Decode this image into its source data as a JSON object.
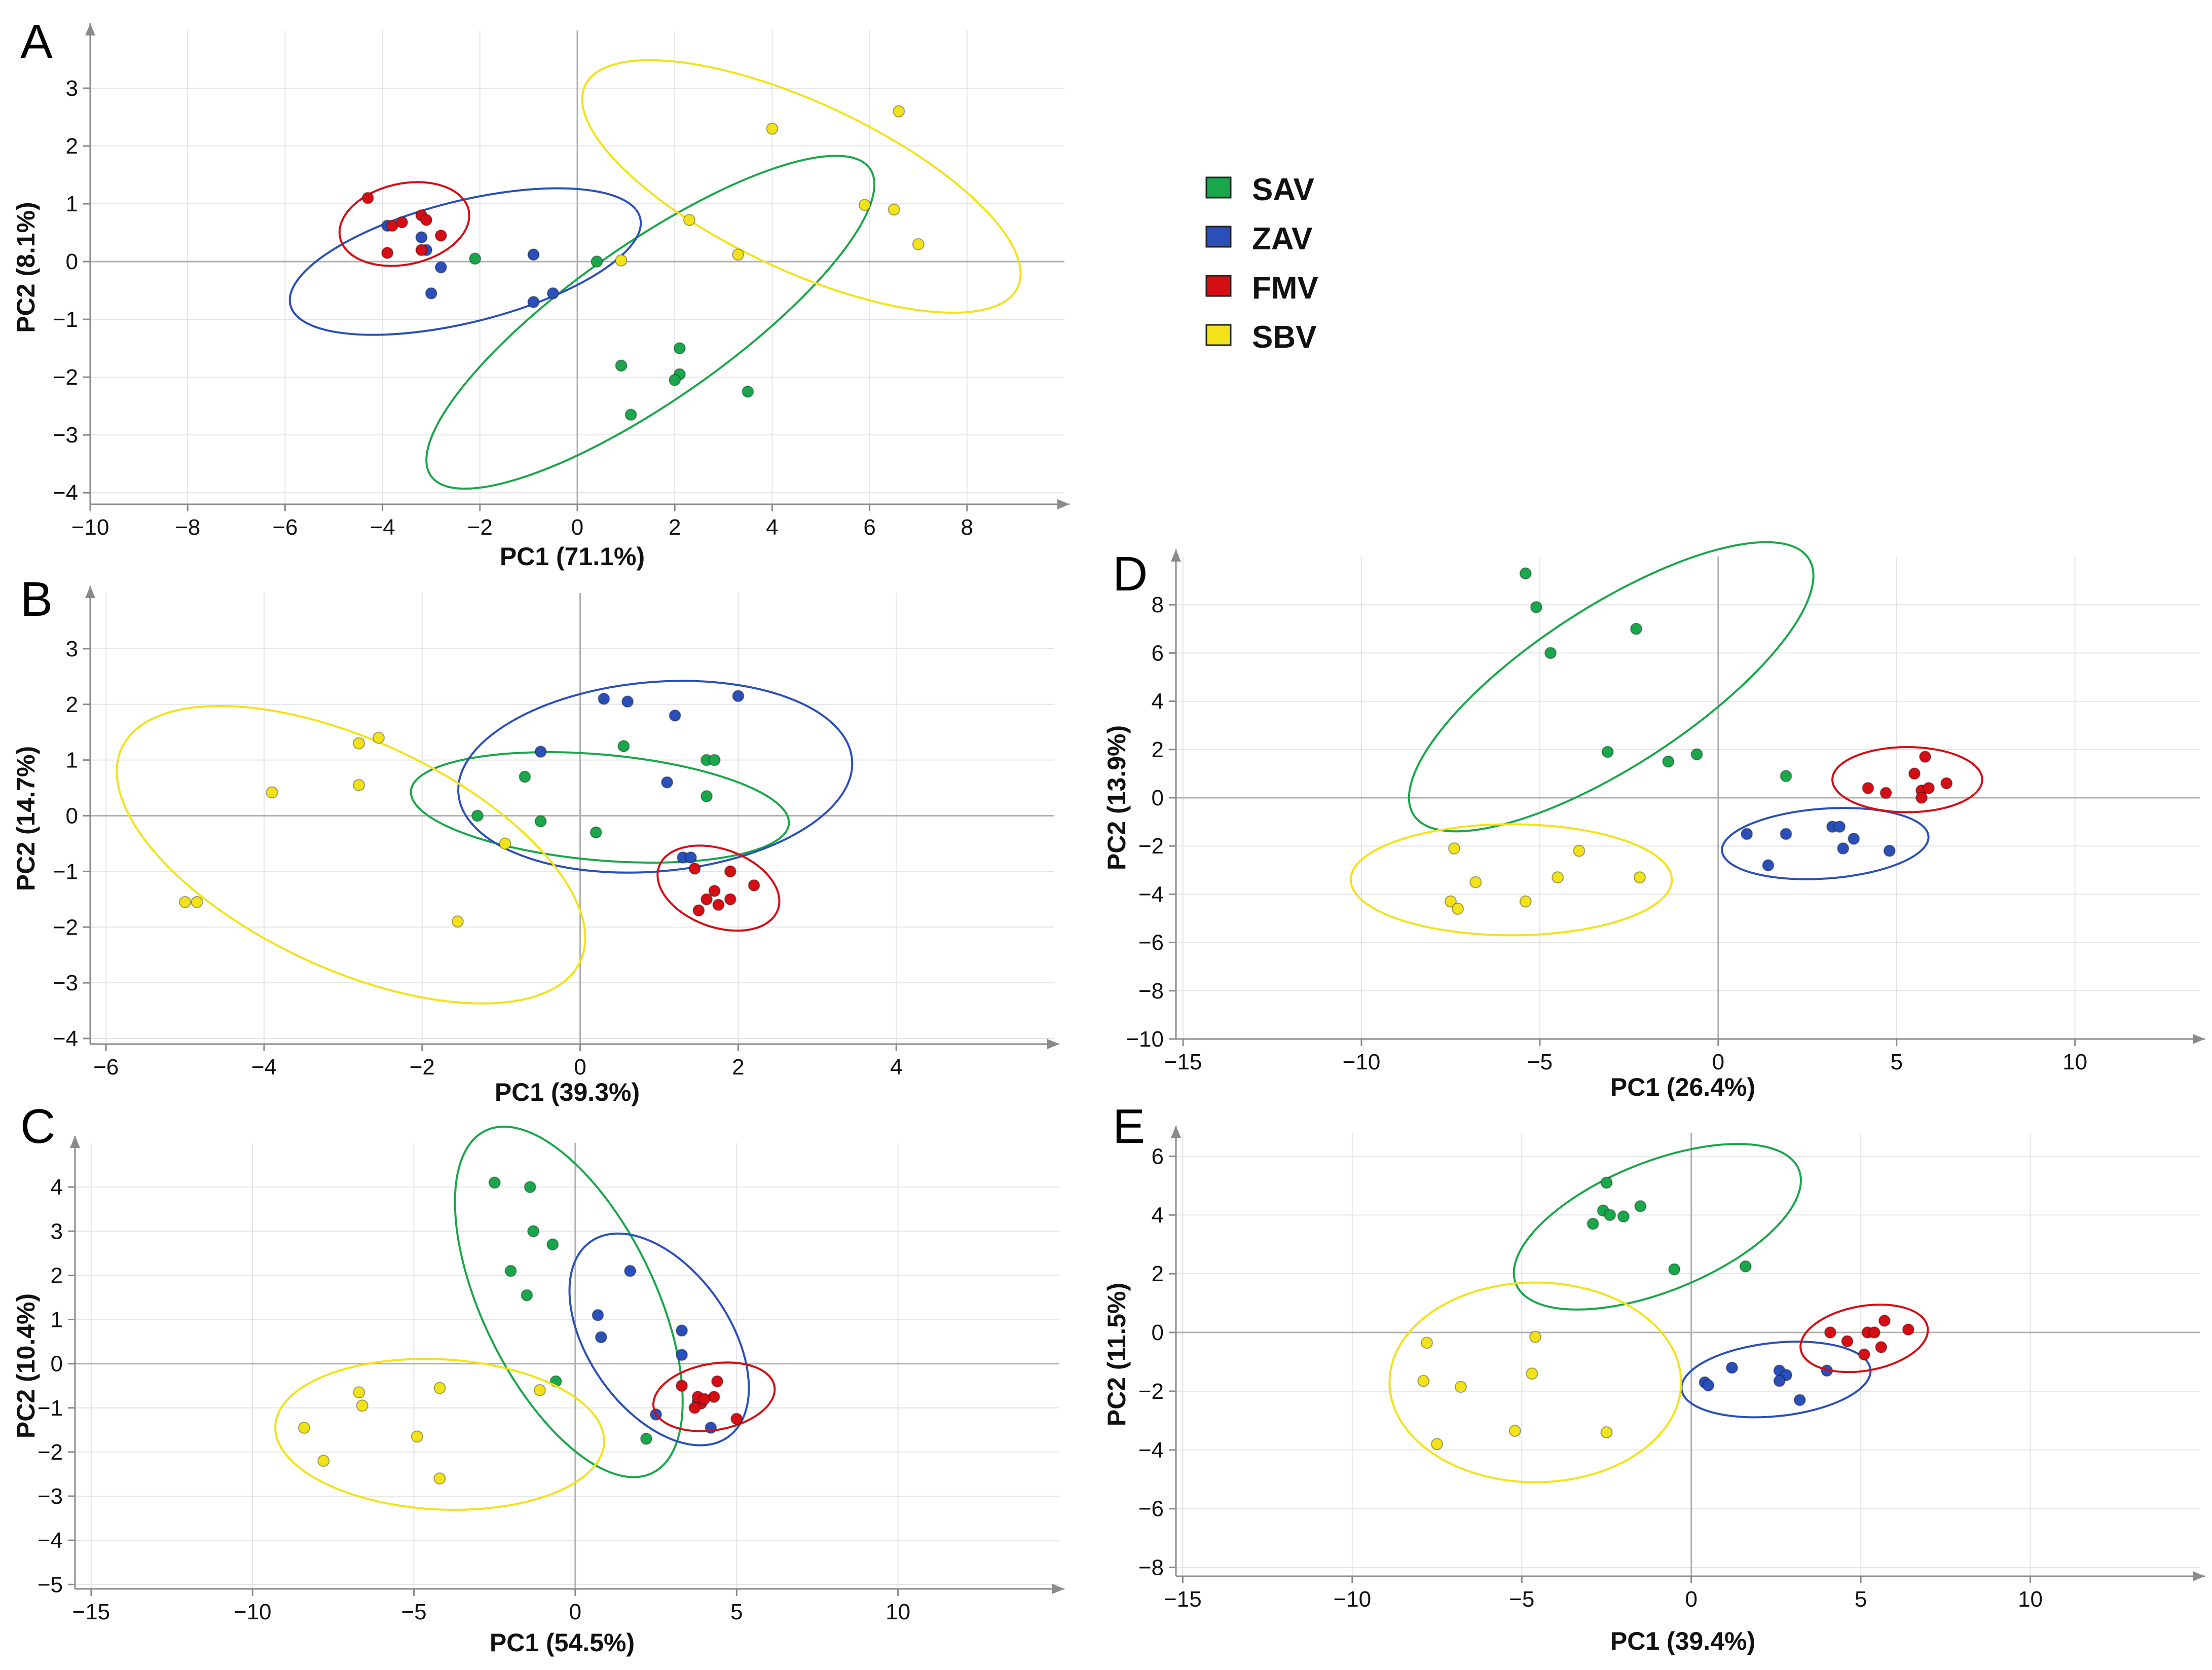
{
  "legend": {
    "items": [
      {
        "id": "SAV",
        "label": "SAV",
        "color": "#1aa64a"
      },
      {
        "id": "ZAV",
        "label": "ZAV",
        "color": "#2b4fb8"
      },
      {
        "id": "FMV",
        "label": "FMV",
        "color": "#d40e14"
      },
      {
        "id": "SBV",
        "label": "SBV",
        "color": "#f2e219"
      }
    ]
  },
  "chart_data": [
    {
      "type": "scatter",
      "panel": "A",
      "xlabel": "PC1 (71.1%)",
      "ylabel": "PC2 (8.1%)",
      "xlim": [
        -10,
        10
      ],
      "ylim": [
        -4.2,
        4
      ],
      "xticks": [
        -10,
        -8,
        -6,
        -4,
        -2,
        0,
        2,
        4,
        6,
        8
      ],
      "xtick_labels": [
        "−10",
        "−8",
        "−6",
        "−4",
        "−2",
        "0",
        "2",
        "4",
        "6",
        "8"
      ],
      "yticks": [
        -4,
        -3,
        -2,
        -1,
        0,
        1,
        2,
        3
      ],
      "ytick_labels": [
        "−4",
        "−3",
        "−2",
        "−1",
        "0",
        "1",
        "2",
        "3"
      ],
      "series": [
        {
          "name": "SAV",
          "points": [
            [
              -2.1,
              0.05
            ],
            [
              0.4,
              0.0
            ],
            [
              2.1,
              -1.5
            ],
            [
              0.9,
              -1.8
            ],
            [
              2.1,
              -1.95
            ],
            [
              2.0,
              -2.05
            ],
            [
              3.5,
              -2.25
            ],
            [
              1.1,
              -2.65
            ]
          ],
          "ellipse": {
            "cx": 1.5,
            "cy": -1.05,
            "rx": 5.5,
            "ry": 1.35,
            "angle": -35
          }
        },
        {
          "name": "ZAV",
          "points": [
            [
              -3.9,
              0.62
            ],
            [
              -3.2,
              0.42
            ],
            [
              -3.1,
              0.2
            ],
            [
              -2.8,
              -0.1
            ],
            [
              -3.0,
              -0.55
            ],
            [
              -0.9,
              0.12
            ],
            [
              -0.9,
              -0.7
            ],
            [
              -0.5,
              -0.55
            ]
          ],
          "ellipse": {
            "cx": -2.3,
            "cy": 0.0,
            "rx": 3.7,
            "ry": 1.05,
            "angle": -14
          }
        },
        {
          "name": "FMV",
          "points": [
            [
              -4.3,
              1.1
            ],
            [
              -3.8,
              0.62
            ],
            [
              -3.6,
              0.68
            ],
            [
              -3.2,
              0.8
            ],
            [
              -3.1,
              0.72
            ],
            [
              -2.8,
              0.45
            ],
            [
              -3.2,
              0.2
            ],
            [
              -3.9,
              0.15
            ]
          ],
          "ellipse": {
            "cx": -3.55,
            "cy": 0.65,
            "rx": 1.35,
            "ry": 0.7,
            "angle": -12
          }
        },
        {
          "name": "SBV",
          "points": [
            [
              4.0,
              2.3
            ],
            [
              6.6,
              2.6
            ],
            [
              5.9,
              0.98
            ],
            [
              6.5,
              0.9
            ],
            [
              7.0,
              0.3
            ],
            [
              2.3,
              0.72
            ],
            [
              3.3,
              0.12
            ],
            [
              0.9,
              0.02
            ]
          ],
          "ellipse": {
            "cx": 4.6,
            "cy": 1.3,
            "rx": 4.9,
            "ry": 1.45,
            "angle": 25
          }
        }
      ]
    },
    {
      "type": "scatter",
      "panel": "B",
      "xlabel": "PC1 (39.3%)",
      "ylabel": "PC2 (14.7%)",
      "xlim": [
        -6.2,
        6
      ],
      "ylim": [
        -4.1,
        4
      ],
      "xticks": [
        -6,
        -4,
        -2,
        0,
        2,
        4
      ],
      "xtick_labels": [
        "−6",
        "−4",
        "−2",
        "0",
        "2",
        "4"
      ],
      "yticks": [
        -4,
        -3,
        -2,
        -1,
        0,
        1,
        2,
        3
      ],
      "ytick_labels": [
        "−4",
        "−3",
        "−2",
        "−1",
        "0",
        "1",
        "2",
        "3"
      ],
      "series": [
        {
          "name": "SAV",
          "points": [
            [
              -1.3,
              0.0
            ],
            [
              -0.7,
              0.7
            ],
            [
              -0.5,
              -0.1
            ],
            [
              0.2,
              -0.3
            ],
            [
              0.55,
              1.25
            ],
            [
              1.6,
              1.0
            ],
            [
              1.7,
              1.0
            ],
            [
              1.6,
              0.35
            ]
          ],
          "ellipse": {
            "cx": 0.25,
            "cy": 0.15,
            "rx": 2.4,
            "ry": 0.95,
            "angle": 5
          }
        },
        {
          "name": "ZAV",
          "points": [
            [
              -0.5,
              1.15
            ],
            [
              0.3,
              2.1
            ],
            [
              0.6,
              2.05
            ],
            [
              1.2,
              1.8
            ],
            [
              2.0,
              2.15
            ],
            [
              1.1,
              0.6
            ],
            [
              1.3,
              -0.75
            ],
            [
              1.4,
              -0.75
            ]
          ],
          "ellipse": {
            "cx": 0.95,
            "cy": 0.7,
            "rx": 2.5,
            "ry": 1.7,
            "angle": -5
          }
        },
        {
          "name": "FMV",
          "points": [
            [
              1.45,
              -0.95
            ],
            [
              1.9,
              -1.0
            ],
            [
              2.2,
              -1.25
            ],
            [
              1.7,
              -1.35
            ],
            [
              1.9,
              -1.5
            ],
            [
              1.75,
              -1.6
            ],
            [
              1.6,
              -1.5
            ],
            [
              1.5,
              -1.7
            ]
          ],
          "ellipse": {
            "cx": 1.75,
            "cy": -1.3,
            "rx": 0.8,
            "ry": 0.7,
            "angle": 20
          }
        },
        {
          "name": "SBV",
          "points": [
            [
              -5.0,
              -1.55
            ],
            [
              -4.85,
              -1.55
            ],
            [
              -3.9,
              0.42
            ],
            [
              -2.8,
              1.3
            ],
            [
              -2.55,
              1.4
            ],
            [
              -2.8,
              0.55
            ],
            [
              -0.95,
              -0.5
            ],
            [
              -1.55,
              -1.9
            ]
          ],
          "ellipse": {
            "cx": -2.9,
            "cy": -0.7,
            "rx": 3.2,
            "ry": 2.05,
            "angle": 25
          }
        }
      ]
    },
    {
      "type": "scatter",
      "panel": "C",
      "xlabel": "PC1 (54.5%)",
      "ylabel": "PC2 (10.4%)",
      "xlim": [
        -15.5,
        15
      ],
      "ylim": [
        -5.1,
        5
      ],
      "xticks": [
        -15,
        -10,
        -5,
        0,
        5,
        10
      ],
      "xtick_labels": [
        "−15",
        "−10",
        "−5",
        "0",
        "5",
        "10"
      ],
      "yticks": [
        -5,
        -4,
        -3,
        -2,
        -1,
        0,
        1,
        2,
        3,
        4
      ],
      "ytick_labels": [
        "−5",
        "−4",
        "−3",
        "−2",
        "−1",
        "0",
        "1",
        "2",
        "3",
        "4"
      ],
      "series": [
        {
          "name": "SAV",
          "points": [
            [
              -2.5,
              4.1
            ],
            [
              -1.4,
              4.0
            ],
            [
              -1.3,
              3.0
            ],
            [
              -0.7,
              2.7
            ],
            [
              -2.0,
              2.1
            ],
            [
              -1.5,
              1.55
            ],
            [
              -0.6,
              -0.4
            ],
            [
              2.2,
              -1.7
            ]
          ],
          "ellipse": {
            "cx": -0.2,
            "cy": 1.4,
            "rx": 5.9,
            "ry": 1.95,
            "angle": 64
          }
        },
        {
          "name": "ZAV",
          "points": [
            [
              1.7,
              2.1
            ],
            [
              0.7,
              1.1
            ],
            [
              0.8,
              0.6
            ],
            [
              3.3,
              0.75
            ],
            [
              3.3,
              0.2
            ],
            [
              2.5,
              -1.15
            ],
            [
              3.8,
              -0.85
            ],
            [
              4.2,
              -1.45
            ]
          ],
          "ellipse": {
            "cx": 2.6,
            "cy": 0.55,
            "rx": 3.7,
            "ry": 1.6,
            "angle": 55
          }
        },
        {
          "name": "FMV",
          "points": [
            [
              3.3,
              -0.5
            ],
            [
              4.4,
              -0.4
            ],
            [
              5.0,
              -1.25
            ],
            [
              4.3,
              -0.75
            ],
            [
              3.9,
              -0.9
            ],
            [
              3.7,
              -1.0
            ],
            [
              3.8,
              -0.75
            ],
            [
              4.0,
              -0.8
            ]
          ],
          "ellipse": {
            "cx": 4.3,
            "cy": -0.75,
            "rx": 1.9,
            "ry": 0.75,
            "angle": -10
          }
        },
        {
          "name": "SBV",
          "points": [
            [
              -6.7,
              -0.65
            ],
            [
              -6.6,
              -0.95
            ],
            [
              -4.2,
              -0.55
            ],
            [
              -8.4,
              -1.45
            ],
            [
              -7.8,
              -2.2
            ],
            [
              -4.9,
              -1.65
            ],
            [
              -4.2,
              -2.6
            ],
            [
              -1.1,
              -0.6
            ]
          ],
          "ellipse": {
            "cx": -4.2,
            "cy": -1.6,
            "rx": 5.1,
            "ry": 1.7,
            "angle": 3
          }
        }
      ]
    },
    {
      "type": "scatter",
      "panel": "D",
      "xlabel": "PC1 (26.4%)",
      "ylabel": "PC2 (13.9%)",
      "xlim": [
        -15.2,
        13.5
      ],
      "ylim": [
        -10,
        10
      ],
      "xticks": [
        -15,
        -10,
        -5,
        0,
        5,
        10
      ],
      "xtick_labels": [
        "−15",
        "−10",
        "−5",
        "0",
        "5",
        "10"
      ],
      "yticks": [
        -10,
        -8,
        -6,
        -4,
        -2,
        0,
        2,
        4,
        6,
        8
      ],
      "ytick_labels": [
        "−10",
        "−8",
        "−6",
        "−4",
        "−2",
        "0",
        "2",
        "4",
        "6",
        "8"
      ],
      "series": [
        {
          "name": "SAV",
          "points": [
            [
              -5.4,
              9.3
            ],
            [
              -5.1,
              7.9
            ],
            [
              -4.7,
              6.0
            ],
            [
              -2.3,
              7.0
            ],
            [
              -3.1,
              1.9
            ],
            [
              -1.4,
              1.5
            ],
            [
              -0.6,
              1.8
            ],
            [
              1.9,
              0.9
            ]
          ],
          "ellipse": {
            "cx": -3.0,
            "cy": 4.6,
            "rx": 6.6,
            "ry": 3.3,
            "angle": -33
          }
        },
        {
          "name": "ZAV",
          "points": [
            [
              0.8,
              -1.5
            ],
            [
              1.9,
              -1.5
            ],
            [
              3.2,
              -1.2
            ],
            [
              3.4,
              -1.2
            ],
            [
              3.8,
              -1.7
            ],
            [
              3.5,
              -2.1
            ],
            [
              4.8,
              -2.2
            ],
            [
              1.4,
              -2.8
            ]
          ],
          "ellipse": {
            "cx": 3.0,
            "cy": -1.9,
            "rx": 2.9,
            "ry": 1.45,
            "angle": -4
          }
        },
        {
          "name": "FMV",
          "points": [
            [
              5.8,
              1.7
            ],
            [
              5.5,
              1.0
            ],
            [
              4.2,
              0.4
            ],
            [
              4.7,
              0.2
            ],
            [
              5.7,
              0.3
            ],
            [
              5.9,
              0.4
            ],
            [
              6.4,
              0.6
            ],
            [
              5.7,
              0.0
            ]
          ],
          "ellipse": {
            "cx": 5.3,
            "cy": 0.75,
            "rx": 2.1,
            "ry": 1.35,
            "angle": 0
          }
        },
        {
          "name": "SBV",
          "points": [
            [
              -7.4,
              -2.1
            ],
            [
              -6.8,
              -3.5
            ],
            [
              -7.5,
              -4.3
            ],
            [
              -7.3,
              -4.6
            ],
            [
              -5.4,
              -4.3
            ],
            [
              -4.5,
              -3.3
            ],
            [
              -3.9,
              -2.2
            ],
            [
              -2.2,
              -3.3
            ]
          ],
          "ellipse": {
            "cx": -5.8,
            "cy": -3.4,
            "rx": 4.5,
            "ry": 2.3,
            "angle": 0
          }
        }
      ]
    },
    {
      "type": "scatter",
      "panel": "E",
      "xlabel": "PC1 (39.4%)",
      "ylabel": "PC2 (11.5%)",
      "xlim": [
        -15.2,
        15
      ],
      "ylim": [
        -8.3,
        6.8
      ],
      "xticks": [
        -15,
        -10,
        -5,
        0,
        5,
        10
      ],
      "xtick_labels": [
        "−15",
        "−10",
        "−5",
        "0",
        "5",
        "10"
      ],
      "yticks": [
        -8,
        -6,
        -4,
        -2,
        0,
        2,
        4,
        6
      ],
      "ytick_labels": [
        "−8",
        "−6",
        "−4",
        "−2",
        "0",
        "2",
        "4",
        "6"
      ],
      "series": [
        {
          "name": "SAV",
          "points": [
            [
              -2.5,
              5.1
            ],
            [
              -2.6,
              4.15
            ],
            [
              -2.4,
              4.0
            ],
            [
              -2.0,
              3.95
            ],
            [
              -1.5,
              4.3
            ],
            [
              -2.9,
              3.7
            ],
            [
              -0.5,
              2.15
            ],
            [
              1.6,
              2.25
            ]
          ],
          "ellipse": {
            "cx": -1.0,
            "cy": 3.6,
            "rx": 4.5,
            "ry": 2.2,
            "angle": -22
          }
        },
        {
          "name": "ZAV",
          "points": [
            [
              0.4,
              -1.7
            ],
            [
              0.5,
              -1.8
            ],
            [
              1.2,
              -1.2
            ],
            [
              2.6,
              -1.3
            ],
            [
              2.8,
              -1.45
            ],
            [
              2.6,
              -1.65
            ],
            [
              3.2,
              -2.3
            ],
            [
              4.0,
              -1.3
            ]
          ],
          "ellipse": {
            "cx": 2.5,
            "cy": -1.6,
            "rx": 2.8,
            "ry": 1.25,
            "angle": -6
          }
        },
        {
          "name": "FMV",
          "points": [
            [
              4.1,
              0.0
            ],
            [
              4.6,
              -0.3
            ],
            [
              5.2,
              0.0
            ],
            [
              5.7,
              0.4
            ],
            [
              5.4,
              0.0
            ],
            [
              6.4,
              0.1
            ],
            [
              5.1,
              -0.75
            ],
            [
              5.6,
              -0.5
            ]
          ],
          "ellipse": {
            "cx": 5.1,
            "cy": -0.2,
            "rx": 1.9,
            "ry": 1.1,
            "angle": -10
          }
        },
        {
          "name": "SBV",
          "points": [
            [
              -7.8,
              -0.35
            ],
            [
              -4.6,
              -0.15
            ],
            [
              -7.9,
              -1.65
            ],
            [
              -6.8,
              -1.85
            ],
            [
              -4.7,
              -1.4
            ],
            [
              -7.5,
              -3.8
            ],
            [
              -5.2,
              -3.35
            ],
            [
              -2.5,
              -3.4
            ]
          ],
          "ellipse": {
            "cx": -4.6,
            "cy": -1.7,
            "rx": 4.3,
            "ry": 3.4,
            "angle": 0
          }
        }
      ]
    }
  ]
}
